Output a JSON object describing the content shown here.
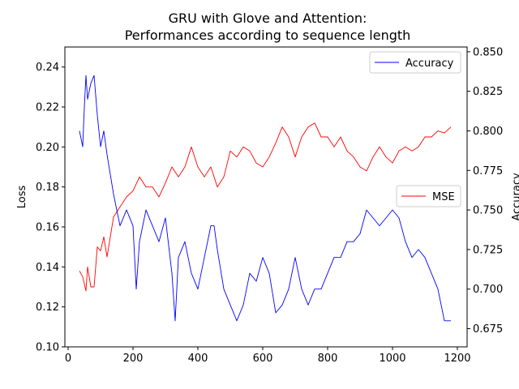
{
  "chart_data": {
    "type": "line",
    "title_lines": [
      "GRU with Glove and Attention:",
      "Performances according to sequence length"
    ],
    "x": {
      "range": [
        -10,
        1230
      ],
      "ticks": [
        0,
        200,
        400,
        600,
        800,
        1000,
        1200
      ],
      "tick_labels": [
        "0",
        "200",
        "400",
        "600",
        "800",
        "1000",
        "1200"
      ]
    },
    "y_left": {
      "label": "Loss",
      "label_color": "#ff0000",
      "range": [
        0.1,
        0.25
      ],
      "ticks": [
        0.1,
        0.12,
        0.14,
        0.16,
        0.18,
        0.2,
        0.22,
        0.24
      ],
      "tick_labels": [
        "0.10",
        "0.12",
        "0.14",
        "0.16",
        "0.18",
        "0.20",
        "0.22",
        "0.24"
      ]
    },
    "y_right": {
      "label": "Accuracy",
      "label_color": "#0000ff",
      "range": [
        0.6635,
        0.853
      ],
      "ticks": [
        0.675,
        0.7,
        0.725,
        0.75,
        0.775,
        0.8,
        0.825,
        0.85
      ],
      "tick_labels": [
        "0.675",
        "0.700",
        "0.725",
        "0.750",
        "0.775",
        "0.800",
        "0.825",
        "0.850"
      ]
    },
    "series": [
      {
        "name": "MSE",
        "axis": "left",
        "color": "#ff0000",
        "x": [
          35,
          45,
          55,
          60,
          70,
          80,
          90,
          100,
          110,
          120,
          125,
          140,
          160,
          180,
          200,
          220,
          240,
          260,
          280,
          300,
          320,
          340,
          360,
          380,
          400,
          420,
          440,
          460,
          480,
          500,
          520,
          540,
          560,
          580,
          600,
          620,
          640,
          660,
          680,
          700,
          720,
          740,
          760,
          780,
          800,
          820,
          840,
          860,
          880,
          900,
          920,
          940,
          960,
          980,
          1000,
          1020,
          1040,
          1060,
          1080,
          1100,
          1120,
          1140,
          1160,
          1180
        ],
        "y": [
          0.138,
          0.135,
          0.128,
          0.14,
          0.13,
          0.13,
          0.15,
          0.148,
          0.155,
          0.145,
          0.15,
          0.165,
          0.17,
          0.175,
          0.178,
          0.185,
          0.18,
          0.18,
          0.175,
          0.182,
          0.19,
          0.185,
          0.19,
          0.2,
          0.19,
          0.185,
          0.19,
          0.18,
          0.185,
          0.198,
          0.195,
          0.2,
          0.198,
          0.192,
          0.19,
          0.195,
          0.202,
          0.21,
          0.205,
          0.195,
          0.205,
          0.21,
          0.212,
          0.205,
          0.205,
          0.2,
          0.205,
          0.198,
          0.195,
          0.19,
          0.188,
          0.195,
          0.2,
          0.195,
          0.192,
          0.198,
          0.2,
          0.198,
          0.2,
          0.205,
          0.205,
          0.208,
          0.207,
          0.21
        ]
      },
      {
        "name": "Accuracy",
        "axis": "right",
        "color": "#0000ff",
        "x": [
          35,
          45,
          50,
          55,
          60,
          70,
          80,
          90,
          100,
          110,
          120,
          140,
          160,
          180,
          200,
          210,
          220,
          240,
          260,
          280,
          300,
          320,
          330,
          340,
          360,
          380,
          400,
          420,
          440,
          450,
          460,
          480,
          500,
          520,
          540,
          560,
          580,
          600,
          620,
          640,
          660,
          680,
          700,
          720,
          740,
          760,
          780,
          800,
          820,
          840,
          860,
          880,
          900,
          920,
          940,
          960,
          980,
          1000,
          1020,
          1040,
          1060,
          1080,
          1100,
          1120,
          1140,
          1160,
          1180
        ],
        "y": [
          0.8,
          0.79,
          0.815,
          0.835,
          0.82,
          0.83,
          0.835,
          0.81,
          0.79,
          0.8,
          0.785,
          0.76,
          0.74,
          0.75,
          0.74,
          0.7,
          0.73,
          0.75,
          0.74,
          0.73,
          0.745,
          0.71,
          0.68,
          0.72,
          0.73,
          0.71,
          0.7,
          0.72,
          0.74,
          0.74,
          0.725,
          0.7,
          0.69,
          0.68,
          0.69,
          0.71,
          0.705,
          0.72,
          0.71,
          0.685,
          0.69,
          0.7,
          0.72,
          0.7,
          0.69,
          0.7,
          0.7,
          0.71,
          0.72,
          0.72,
          0.73,
          0.73,
          0.735,
          0.75,
          0.745,
          0.74,
          0.745,
          0.75,
          0.745,
          0.73,
          0.72,
          0.725,
          0.72,
          0.71,
          0.7,
          0.68,
          0.68
        ]
      }
    ],
    "legend_accuracy": {
      "label": "Accuracy",
      "color": "#0000ff",
      "position": "upper-right"
    },
    "legend_mse": {
      "label": "MSE",
      "color": "#ff0000",
      "position": "center-right"
    },
    "grid": false
  }
}
